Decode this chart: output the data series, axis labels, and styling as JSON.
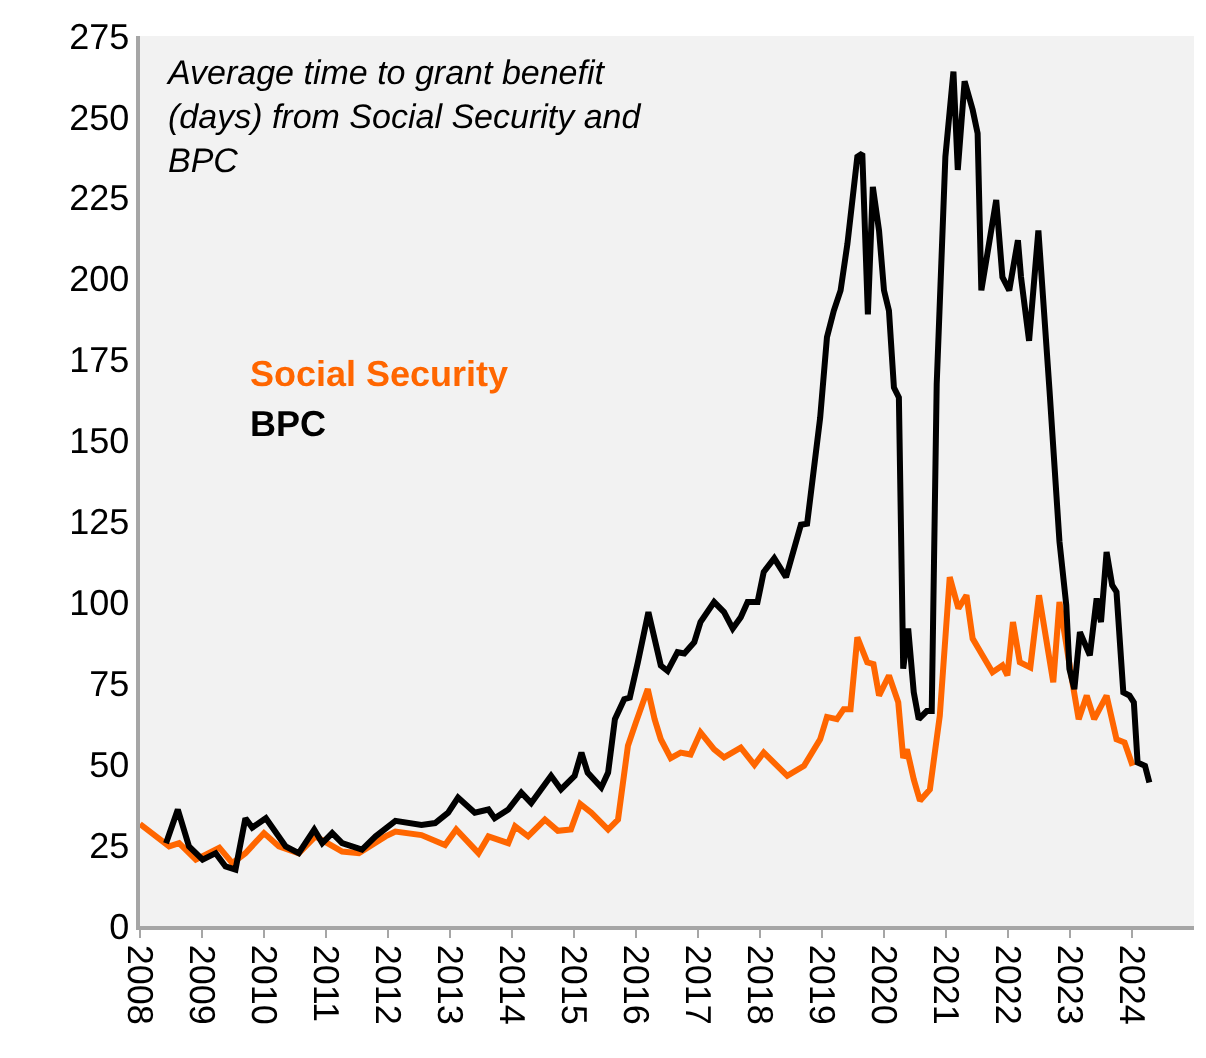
{
  "chart_data": {
    "type": "line",
    "title": "Average time to grant benefit (days) from Social Security and BPC",
    "xlim": [
      2008,
      2025
    ],
    "xticks": [
      2008,
      2009,
      2010,
      2011,
      2012,
      2013,
      2014,
      2015,
      2016,
      2017,
      2018,
      2019,
      2020,
      2021,
      2022,
      2023,
      2024
    ],
    "ylim": [
      0,
      275
    ],
    "yticks": [
      0,
      25,
      50,
      75,
      100,
      125,
      150,
      175,
      200,
      225,
      250,
      275
    ],
    "grid": false,
    "legend": false,
    "marker": "none",
    "line_style": "solid",
    "series": [
      {
        "name": "Social Security",
        "color": "#ff6600",
        "x": [
          2008.0,
          2008.47,
          2008.63,
          2008.9,
          2009.28,
          2009.49,
          2009.7,
          2010.0,
          2010.24,
          2010.56,
          2010.83,
          2011.26,
          2011.53,
          2011.96,
          2012.12,
          2012.54,
          2012.92,
          2013.1,
          2013.46,
          2013.62,
          2013.94,
          2014.05,
          2014.26,
          2014.53,
          2014.74,
          2014.95,
          2015.1,
          2015.28,
          2015.55,
          2015.71,
          2015.87,
          2016.0,
          2016.19,
          2016.3,
          2016.4,
          2016.56,
          2016.72,
          2016.88,
          2017.04,
          2017.26,
          2017.42,
          2017.69,
          2017.91,
          2018.06,
          2018.44,
          2018.71,
          2018.97,
          2019.08,
          2019.24,
          2019.35,
          2019.46,
          2019.57,
          2019.73,
          2019.83,
          2019.92,
          2020.08,
          2020.23,
          2020.31,
          2020.37,
          2020.48,
          2020.58,
          2020.74,
          2020.9,
          2021.06,
          2021.2,
          2021.33,
          2021.43,
          2021.59,
          2021.75,
          2021.91,
          2021.99,
          2022.08,
          2022.19,
          2022.36,
          2022.5,
          2022.73,
          2022.83,
          2023.03,
          2023.14,
          2023.27,
          2023.39,
          2023.59,
          2023.75,
          2023.88,
          2024.01
        ],
        "values": [
          31.5,
          24.6,
          25.6,
          20.5,
          24.2,
          19.4,
          22.5,
          28.7,
          24.6,
          22.5,
          27.7,
          23,
          22.5,
          27.7,
          29.2,
          28.1,
          25,
          29.8,
          22.5,
          27.7,
          25.6,
          30.8,
          27.7,
          32.9,
          29.4,
          29.8,
          37.7,
          35,
          29.8,
          32.9,
          55.7,
          63,
          73.2,
          63.9,
          57.7,
          51.9,
          53.6,
          53,
          59.8,
          54.6,
          52.1,
          55.1,
          49.8,
          53.6,
          46.4,
          49.5,
          57.7,
          64.6,
          63.9,
          67,
          67,
          89.2,
          81.5,
          80.9,
          71.2,
          77.4,
          69.1,
          51.9,
          54.6,
          45.3,
          38.7,
          42.2,
          65,
          107.8,
          98.1,
          102.2,
          88.8,
          83.6,
          78.4,
          80.5,
          77.4,
          93.9,
          81.5,
          79.9,
          102.2,
          75.3,
          100.1,
          76.3,
          63.9,
          71.2,
          63.9,
          71.2,
          57.7,
          56.7,
          49.5
        ]
      },
      {
        "name": "BPC",
        "color": "#000000",
        "x": [
          2008.42,
          2008.61,
          2008.79,
          2009.01,
          2009.22,
          2009.38,
          2009.54,
          2009.7,
          2009.81,
          2010.03,
          2010.35,
          2010.56,
          2010.81,
          2010.94,
          2011.1,
          2011.26,
          2011.58,
          2011.8,
          2012.12,
          2012.54,
          2012.76,
          2012.97,
          2013.13,
          2013.4,
          2013.62,
          2013.72,
          2013.94,
          2014.15,
          2014.31,
          2014.63,
          2014.79,
          2015.01,
          2015.12,
          2015.22,
          2015.44,
          2015.55,
          2015.66,
          2015.81,
          2015.9,
          2016.03,
          2016.2,
          2016.4,
          2016.51,
          2016.67,
          2016.78,
          2016.94,
          2017.04,
          2017.26,
          2017.42,
          2017.56,
          2017.69,
          2017.8,
          2017.96,
          2018.06,
          2018.23,
          2018.42,
          2018.66,
          2018.76,
          2018.97,
          2019.08,
          2019.19,
          2019.3,
          2019.41,
          2019.57,
          2019.65,
          2019.74,
          2019.82,
          2019.92,
          2020.0,
          2020.08,
          2020.16,
          2020.24,
          2020.31,
          2020.39,
          2020.48,
          2020.56,
          2020.69,
          2020.77,
          2020.85,
          2020.99,
          2021.12,
          2021.19,
          2021.3,
          2021.43,
          2021.51,
          2021.57,
          2021.81,
          2021.91,
          2022.02,
          2022.16,
          2022.21,
          2022.34,
          2022.49,
          2022.67,
          2022.83,
          2022.94,
          2022.99,
          2023.07,
          2023.16,
          2023.32,
          2023.43,
          2023.5,
          2023.59,
          2023.68,
          2023.75,
          2023.86,
          2023.96,
          2024.03,
          2024.09,
          2024.21,
          2024.28
        ],
        "values": [
          25.6,
          36,
          24.6,
          20.5,
          22.5,
          18.4,
          17.4,
          33.3,
          30.4,
          33.3,
          24.6,
          22.5,
          29.8,
          25.6,
          28.7,
          25.6,
          23.6,
          27.7,
          32.5,
          31.2,
          31.8,
          35,
          39.7,
          35,
          36,
          33.3,
          36,
          41.2,
          38,
          46.4,
          42.2,
          46.4,
          53.6,
          47.4,
          42.8,
          47.4,
          63.9,
          70.1,
          70.6,
          81.5,
          97,
          80.5,
          78.8,
          84.6,
          84.2,
          87.7,
          93.9,
          100.1,
          97,
          91.9,
          95.4,
          100.1,
          100.1,
          109.4,
          113.6,
          107.8,
          124,
          124.3,
          157,
          181.9,
          190.1,
          196.4,
          210.8,
          237.7,
          238.7,
          189,
          228.4,
          214.9,
          196.4,
          190.1,
          166.4,
          163.3,
          79.5,
          91.9,
          72.2,
          63.9,
          66.4,
          66.4,
          167.4,
          237.7,
          264,
          233.6,
          261,
          252.2,
          244.9,
          196.4,
          224.3,
          200.5,
          196.4,
          211.9,
          200.5,
          180.8,
          214.9,
          165.4,
          118.8,
          99.1,
          79.5,
          73.2,
          90.8,
          83.6,
          101.2,
          93.9,
          115.6,
          105.3,
          103.2,
          72.2,
          71.2,
          69.1,
          50.5,
          49.5,
          44.3
        ]
      }
    ]
  }
}
